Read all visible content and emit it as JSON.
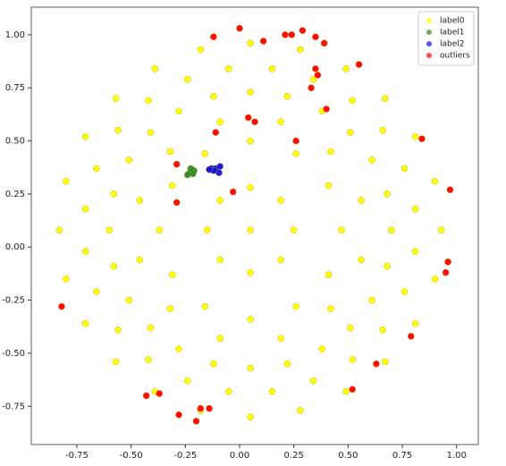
{
  "chart_data": {
    "type": "scatter",
    "legend": "upper right",
    "xlim": [
      -0.96,
      1.1
    ],
    "ylim": [
      -0.93,
      1.13
    ],
    "xticks": [
      {
        "value": -0.75,
        "label": "-0.75"
      },
      {
        "value": -0.5,
        "label": "-0.50"
      },
      {
        "value": -0.25,
        "label": "-0.25"
      },
      {
        "value": 0,
        "label": "0.00"
      },
      {
        "value": 0.25,
        "label": "0.25"
      },
      {
        "value": 0.5,
        "label": "0.50"
      },
      {
        "value": 0.75,
        "label": "0.75"
      },
      {
        "value": 1,
        "label": "1.00"
      }
    ],
    "yticks": [
      {
        "value": -0.75,
        "label": "-0.75"
      },
      {
        "value": -0.5,
        "label": "-0.50"
      },
      {
        "value": -0.25,
        "label": "-0.25"
      },
      {
        "value": 0,
        "label": "0.00"
      },
      {
        "value": 0.25,
        "label": "0.25"
      },
      {
        "value": 0.5,
        "label": "0.50"
      },
      {
        "value": 0.75,
        "label": "0.75"
      },
      {
        "value": 1,
        "label": "1.00"
      }
    ],
    "series": [
      {
        "name": "label0",
        "color": "#ffff00",
        "x": [
          0.93,
          0.9,
          0.81,
          0.67,
          0.49,
          0.28,
          0.05,
          -0.18,
          -0.39,
          -0.57,
          -0.71,
          -0.8,
          -0.83,
          -0.8,
          -0.71,
          -0.57,
          -0.39,
          -0.18,
          0.05,
          0.28,
          0.49,
          0.67,
          0.81,
          0.9,
          0.7,
          0.68,
          0.61,
          0.51,
          0.38,
          0.22,
          0.05,
          -0.12,
          -0.28,
          -0.41,
          -0.51,
          -0.58,
          -0.6,
          -0.58,
          -0.51,
          -0.41,
          -0.28,
          -0.12,
          0.05,
          0.22,
          0.38,
          0.51,
          0.61,
          0.68,
          0.47,
          0.41,
          0.26,
          0.05,
          -0.16,
          -0.31,
          -0.37,
          -0.31,
          -0.16,
          0.05,
          0.26,
          0.41,
          0.25,
          0.19,
          0.05,
          -0.09,
          -0.15,
          -0.09,
          0.05,
          0.19,
          0.05,
          0.81,
          0.76,
          0.66,
          0.52,
          0.34,
          0.15,
          -0.05,
          -0.24,
          -0.42,
          -0.56,
          -0.66,
          -0.71,
          -0.71,
          -0.66,
          -0.56,
          -0.42,
          -0.24,
          -0.05,
          0.15,
          0.34,
          0.52,
          0.66,
          0.76,
          0.81,
          0.56,
          0.42,
          0.19,
          -0.09,
          -0.32,
          -0.46,
          -0.46,
          -0.32,
          -0.09,
          0.19,
          0.42,
          0.56
        ],
        "y": [
          0.08,
          0.31,
          0.52,
          0.7,
          0.84,
          0.93,
          0.96,
          0.93,
          0.84,
          0.7,
          0.52,
          0.31,
          0.08,
          -0.15,
          -0.36,
          -0.54,
          -0.68,
          -0.77,
          -0.8,
          -0.77,
          -0.68,
          -0.54,
          -0.36,
          -0.15,
          0.08,
          0.25,
          0.41,
          0.54,
          0.64,
          0.71,
          0.73,
          0.71,
          0.64,
          0.54,
          0.41,
          0.25,
          0.08,
          -0.09,
          -0.25,
          -0.38,
          -0.48,
          -0.55,
          -0.57,
          -0.55,
          -0.48,
          -0.38,
          -0.25,
          -0.09,
          0.08,
          0.29,
          0.44,
          0.5,
          0.44,
          0.29,
          0.08,
          -0.13,
          -0.28,
          -0.34,
          -0.28,
          -0.13,
          0.08,
          0.22,
          0.28,
          0.22,
          0.08,
          -0.06,
          -0.12,
          -0.06,
          0.08,
          0.18,
          0.37,
          0.55,
          0.69,
          0.79,
          0.84,
          0.84,
          0.79,
          0.69,
          0.55,
          0.37,
          0.18,
          -0.02,
          -0.21,
          -0.39,
          -0.53,
          -0.63,
          -0.68,
          -0.68,
          -0.63,
          -0.53,
          -0.39,
          -0.21,
          -0.02,
          0.22,
          0.45,
          0.59,
          0.59,
          0.45,
          0.22,
          -0.06,
          -0.29,
          -0.43,
          -0.43,
          -0.29,
          -0.06
        ]
      },
      {
        "name": "label1",
        "color": "#2e8b2e",
        "x": [
          -0.23,
          -0.21,
          -0.24,
          -0.215,
          -0.225
        ],
        "y": [
          0.35,
          0.36,
          0.34,
          0.345,
          0.37
        ]
      },
      {
        "name": "label2",
        "color": "#1010e0",
        "x": [
          -0.13,
          -0.11,
          -0.09,
          -0.095,
          -0.12,
          -0.14
        ],
        "y": [
          0.37,
          0.37,
          0.38,
          0.35,
          0.36,
          0.365
        ]
      },
      {
        "name": "outliers",
        "color": "#ff0000",
        "x": [
          0,
          -0.12,
          0.11,
          0.21,
          0.24,
          0.29,
          0.35,
          0.39,
          0.55,
          0.35,
          0.36,
          0.33,
          0.4,
          0.04,
          0.07,
          0.26,
          -0.11,
          0.84,
          -0.29,
          -0.29,
          -0.03,
          0.97,
          0.96,
          0.95,
          -0.82,
          0.79,
          0.63,
          0.52,
          -0.43,
          -0.37,
          -0.28,
          -0.18,
          -0.14,
          -0.2
        ],
        "y": [
          1.03,
          0.99,
          0.97,
          1.0,
          1.0,
          1.02,
          0.99,
          0.96,
          0.86,
          0.84,
          0.81,
          0.75,
          0.65,
          0.61,
          0.59,
          0.5,
          0.54,
          0.51,
          0.39,
          0.21,
          0.26,
          0.27,
          -0.07,
          -0.12,
          -0.28,
          -0.42,
          -0.55,
          -0.67,
          -0.7,
          -0.69,
          -0.79,
          -0.76,
          -0.76,
          -0.82
        ]
      }
    ]
  }
}
